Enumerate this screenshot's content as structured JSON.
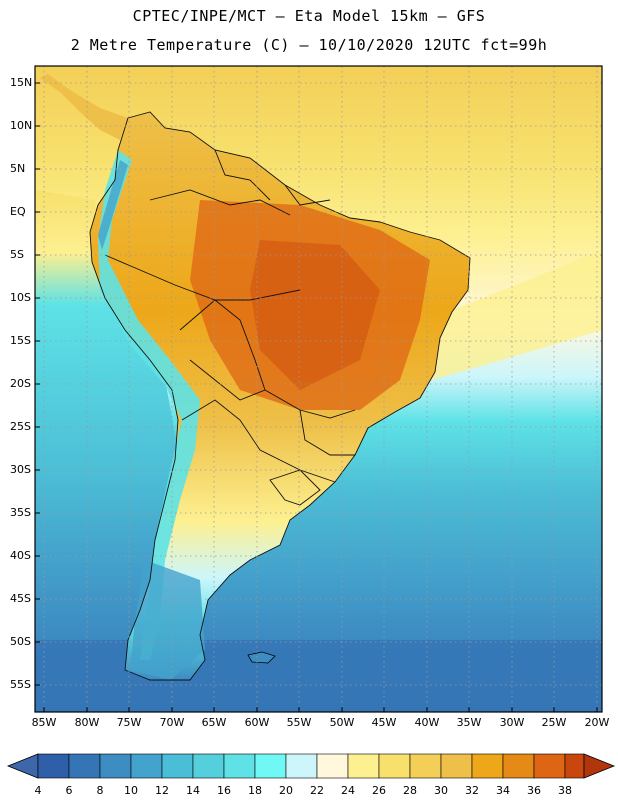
{
  "header": {
    "line1": "CPTEC/INPE/MCT –  Eta Model 15km – GFS",
    "line2": "2 Metre Temperature (C) – 10/10/2020 12UTC fct=99h"
  },
  "map": {
    "lat_labels": [
      "15N",
      "10N",
      "5N",
      "EQ",
      "5S",
      "10S",
      "15S",
      "20S",
      "25S",
      "30S",
      "35S",
      "40S",
      "45S",
      "50S",
      "55S"
    ],
    "lon_labels": [
      "85W",
      "80W",
      "75W",
      "70W",
      "65W",
      "60W",
      "55W",
      "50W",
      "45W",
      "40W",
      "35W",
      "30W",
      "25W",
      "20W"
    ]
  },
  "colorbar": {
    "labels": [
      "4",
      "6",
      "8",
      "10",
      "12",
      "14",
      "16",
      "18",
      "20",
      "22",
      "24",
      "26",
      "28",
      "30",
      "32",
      "34",
      "36",
      "38"
    ],
    "colors": [
      "#2f5fa8",
      "#3575b6",
      "#3d8cc2",
      "#44a3cc",
      "#4cbdd6",
      "#55cfdc",
      "#5ee2e6",
      "#6ff8f4",
      "#cdf6fb",
      "#fff8dc",
      "#fdf090",
      "#f7e06c",
      "#f3cf58",
      "#eec049",
      "#eda719",
      "#e68a17",
      "#dd6514",
      "#c9470e"
    ],
    "under_color": "#3d67a9",
    "over_color": "#b2360c"
  }
}
